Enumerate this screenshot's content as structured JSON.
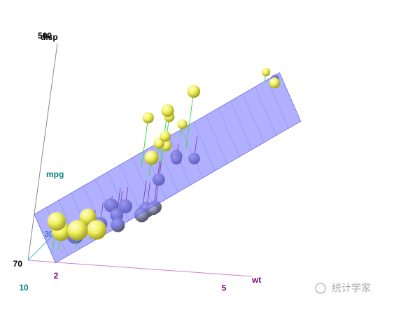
{
  "chart_data": {
    "type": "scatter3d",
    "xlabel": "wt",
    "ylabel": "mpg",
    "zlabel": "disp",
    "xlim": [
      1.5,
      5.5
    ],
    "ylim": [
      10,
      35
    ],
    "zlim": [
      70,
      500
    ],
    "xticks": [
      2,
      5
    ],
    "yticks": [
      10,
      30
    ],
    "zticks": [
      70,
      500
    ],
    "point_color": "#f0f060",
    "below_color": "#9090b0",
    "plane_color": "#7070ff",
    "above_line_color": "#40e040",
    "below_line_color": "#a02060",
    "x": [
      2.62,
      2.875,
      2.32,
      3.215,
      3.44,
      3.46,
      3.57,
      3.19,
      3.15,
      3.44,
      3.44,
      4.07,
      3.73,
      3.78,
      5.25,
      5.424,
      5.345,
      2.2,
      1.615,
      1.835,
      2.465,
      3.52,
      3.435,
      3.84,
      3.845,
      1.935,
      2.14,
      1.513,
      3.17,
      2.77,
      3.57,
      2.78
    ],
    "y": [
      21,
      21,
      22.8,
      21.4,
      18.7,
      18.1,
      14.3,
      24.4,
      22.8,
      19.2,
      17.8,
      16.4,
      17.3,
      15.2,
      10.4,
      10.4,
      14.7,
      32.4,
      30.4,
      33.9,
      21.5,
      15.5,
      15.2,
      13.3,
      19.2,
      27.3,
      26,
      30.4,
      15.8,
      19.7,
      15,
      21.4
    ],
    "z": [
      160,
      160,
      108,
      258,
      360,
      225,
      360,
      146.7,
      140.8,
      167.6,
      167.6,
      275.8,
      275.8,
      275.8,
      472,
      460,
      440,
      78.7,
      75.7,
      71.1,
      120.1,
      318,
      304,
      350,
      400,
      79,
      120.3,
      95.1,
      351,
      145,
      301,
      121
    ],
    "watermark": "统计学家"
  }
}
